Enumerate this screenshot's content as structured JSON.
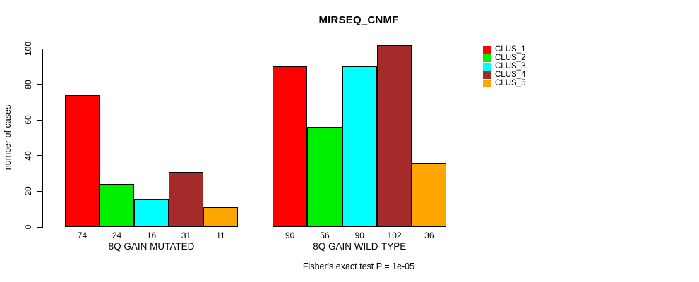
{
  "chart_data": {
    "type": "bar",
    "title": "MIRSEQ_CNMF",
    "ylabel": "number of cases",
    "xlabel": "",
    "ylim": [
      0,
      100
    ],
    "yticks": [
      0,
      20,
      40,
      60,
      80,
      100
    ],
    "grid": false,
    "legend_position": "top-right",
    "categories": [
      "8Q GAIN MUTATED",
      "8Q GAIN WILD-TYPE"
    ],
    "series": [
      {
        "name": "CLUS_1",
        "color": "#FF0000",
        "values": [
          74,
          90
        ]
      },
      {
        "name": "CLUS_2",
        "color": "#00EE00",
        "values": [
          24,
          56
        ]
      },
      {
        "name": "CLUS_3",
        "color": "#00FFFF",
        "values": [
          16,
          90
        ]
      },
      {
        "name": "CLUS_4",
        "color": "#A52A2A",
        "values": [
          31,
          102
        ]
      },
      {
        "name": "CLUS_5",
        "color": "#FFA500",
        "values": [
          11,
          36
        ]
      }
    ],
    "show_value_labels": true,
    "annotation": "Fisher's exact test P = 1e-05"
  }
}
